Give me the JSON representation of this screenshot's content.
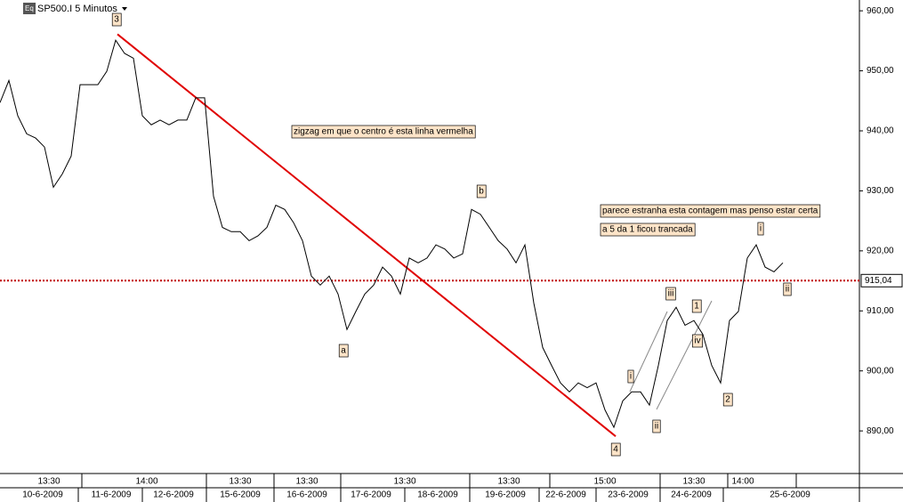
{
  "chart_data": {
    "type": "line",
    "title": "SP500.I 5 Minutos",
    "series": [
      {
        "name": "SP500.I",
        "color": "#000000",
        "values": [
          944.7,
          948.4,
          942.5,
          939.5,
          938.8,
          937.3,
          930.6,
          932.8,
          935.8,
          947.7,
          947.7,
          947.7,
          949.9,
          955.1,
          952.9,
          952.1,
          942.5,
          941,
          941.8,
          941,
          941.8,
          941.8,
          945.5,
          945.5,
          929.1,
          923.9,
          923.2,
          923.2,
          921.7,
          922.5,
          923.9,
          927.6,
          926.9,
          924.7,
          921.7,
          915.8,
          914.3,
          915.8,
          912.8,
          906.9,
          909.9,
          912.8,
          914.3,
          917.3,
          915.8,
          912.8,
          918.8,
          918,
          918.8,
          921,
          920.3,
          918.8,
          919.5,
          926.9,
          926.1,
          923.9,
          921.7,
          920.3,
          918,
          921,
          911.3,
          903.9,
          900.9,
          898,
          896.5,
          898,
          897.2,
          898,
          893.5,
          890.6,
          895,
          896.5,
          896.5,
          894.3,
          900.9,
          908.4,
          910.6,
          907.6,
          908.4,
          906.1,
          900.9,
          898,
          908.4,
          909.9,
          918.8,
          921,
          917.3,
          916.5,
          918
        ]
      }
    ],
    "ylim": [
      882.9,
      961.8
    ],
    "yticks": [
      {
        "value": 890,
        "label": "890,00"
      },
      {
        "value": 900,
        "label": "900,00"
      },
      {
        "value": 910,
        "label": "910,00"
      },
      {
        "value": 920,
        "label": "920,00"
      },
      {
        "value": 930,
        "label": "930,00"
      },
      {
        "value": 940,
        "label": "940,00"
      },
      {
        "value": 950,
        "label": "950,00"
      },
      {
        "value": 960,
        "label": "960,00"
      }
    ],
    "ref_line": {
      "value": 915.04,
      "label": "915,04",
      "color": "#c00000"
    },
    "trend_line": {
      "values": [
        956.1,
        889.1
      ],
      "color": "#e00000"
    },
    "time_labels": [
      "13:30",
      "14:00",
      "13:30",
      "13:30",
      "13:30",
      "13:30",
      "15:00",
      "13:30",
      "14:00"
    ],
    "date_labels": [
      "10-6-2009",
      "11-6-2009",
      "12-6-2009",
      "15-6-2009",
      "16-6-2009",
      "17-6-2009",
      "18-6-2009",
      "19-6-2009",
      "22-6-2009",
      "23-6-2009",
      "24-6-2009",
      "25-6-2009"
    ],
    "annotations": [
      "3",
      "a",
      "b",
      "4",
      "i",
      "ii",
      "iii",
      "iv",
      "1",
      "2",
      "i",
      "ii",
      "zigzag em que o centro é esta linha vermelha",
      "parece estranha esta contagem mas penso estar certa",
      "a 5 da 1 ficou trancada"
    ]
  }
}
